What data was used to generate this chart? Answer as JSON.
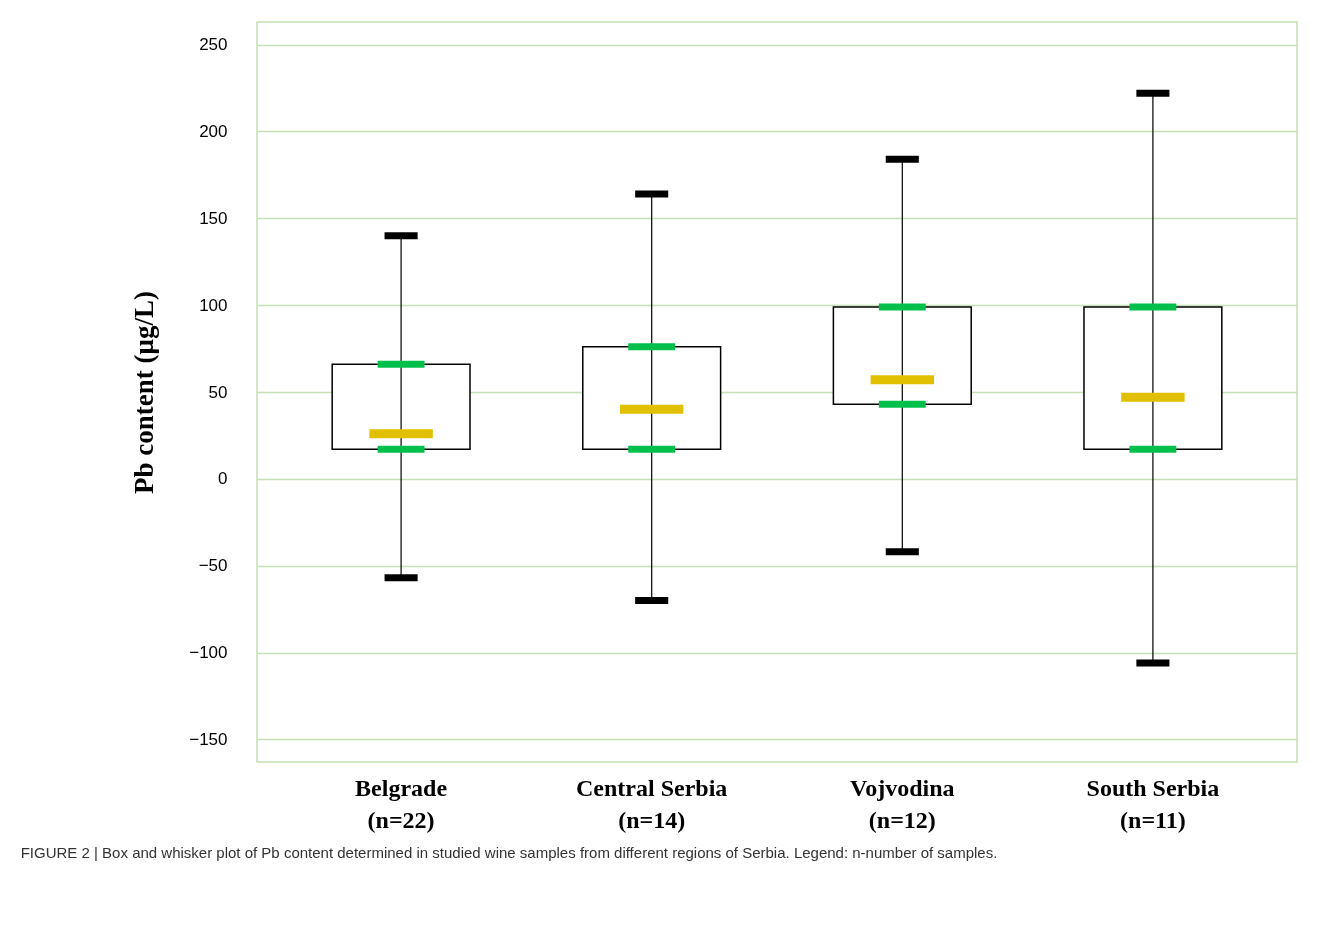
{
  "chart_data": {
    "type": "box",
    "ylabel": "Pb content (μg/L)",
    "categories": [
      "Belgrade\n(n=22)",
      "Central Serbia\n(n=14)",
      "Vojvodina\n(n=12)",
      "South Serbia\n(n=11)"
    ],
    "boxes": [
      {
        "low": -57,
        "q1": 17,
        "median": 26,
        "q3": 66,
        "high": 140
      },
      {
        "low": -70,
        "q1": 17,
        "median": 40,
        "q3": 76,
        "high": 164
      },
      {
        "low": -42,
        "q1": 43,
        "median": 57,
        "q3": 99,
        "high": 184
      },
      {
        "low": -106,
        "q1": 17,
        "median": 47,
        "q3": 99,
        "high": 222
      }
    ],
    "ylim": [
      -163,
      263
    ],
    "yticks": [
      -150,
      -100,
      -50,
      0,
      50,
      100,
      150,
      200,
      250
    ],
    "grid": true,
    "annotations": [
      "FIGURE 2 | Box and whisker plot of Pb content determined in studied wine samples from different regions of Serbia. Legend: n-number of samples."
    ]
  }
}
